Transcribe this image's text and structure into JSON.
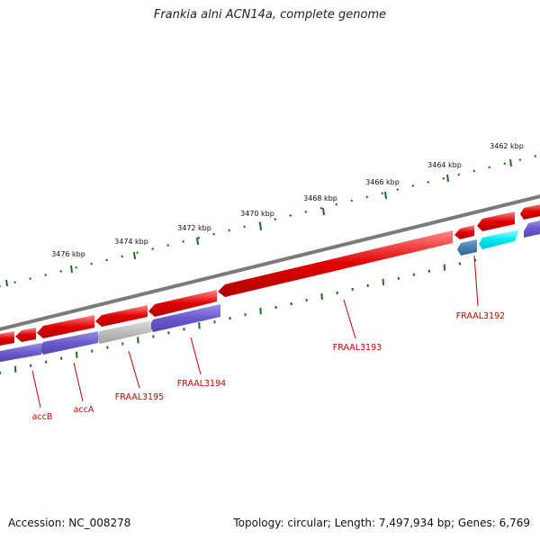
{
  "title": "Frankia alni ACN14a, complete genome",
  "footer": {
    "accession": "Accession: NC_008278",
    "summary": "Topology: circular; Length: 7,497,934 bp; Genes: 6,769"
  },
  "ruler": {
    "labels": [
      "3462 kbp",
      "3464 kbp",
      "3466 kbp",
      "3468 kbp",
      "3470 kbp",
      "3472 kbp",
      "3474 kbp",
      "3476 kbp"
    ]
  },
  "gene_labels": [
    "FRAAL3192",
    "FRAAL3193",
    "FRAAL3194",
    "FRAAL3195",
    "accA",
    "accB"
  ],
  "colors": {
    "forward_cds": "#e00000",
    "reverse_cds": "#6a5acd",
    "gray_cds": "#b8b8b8",
    "cyan_cds": "#00e5ee",
    "steelblue_cds": "#4a7fb0",
    "backbone": "#7a7a7a",
    "ruler": "#1e6b1e",
    "labels": "#cc0000"
  }
}
